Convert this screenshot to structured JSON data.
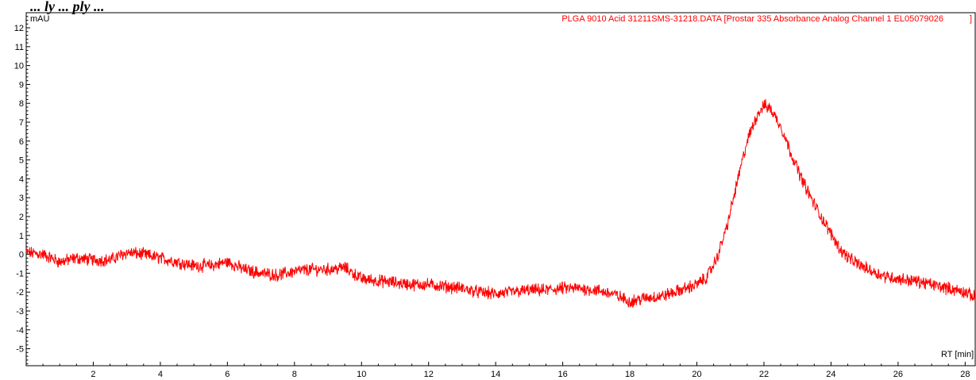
{
  "page": {
    "heading": "... ly ... ply ..."
  },
  "chart_data": {
    "type": "line",
    "title": "",
    "trace_label": "PLGA 9010 Acid 31211SMS-31218.DATA [Prostar 335 Absorbance Analog Channel 1 EL05079026",
    "trace_label_end": "]",
    "xlabel": "RT [min]",
    "ylabel": "mAU",
    "xlim": [
      0,
      28.3
    ],
    "ylim": [
      -5.9,
      12.8
    ],
    "x_ticks": [
      2,
      4,
      6,
      8,
      10,
      12,
      14,
      16,
      18,
      20,
      22,
      24,
      26,
      28
    ],
    "y_ticks": [
      -5,
      -4,
      -3,
      -2,
      -1,
      0,
      1,
      2,
      3,
      4,
      5,
      6,
      7,
      8,
      9,
      10,
      11,
      12
    ],
    "grid": false,
    "color": "#ff0000",
    "series": [
      {
        "x": [
          0,
          0.5,
          1,
          1.5,
          2,
          2.5,
          3,
          3.5,
          4,
          4.5,
          5,
          5.5,
          6,
          6.5,
          7,
          7.5,
          8,
          8.5,
          9,
          9.5,
          10,
          10.5,
          11,
          11.5,
          12,
          12.5,
          13,
          13.5,
          14,
          14.5,
          15,
          15.5,
          16,
          16.5,
          17,
          17.5,
          18,
          18.5,
          19,
          19.5,
          20,
          20.3,
          20.6,
          20.9,
          21.2,
          21.5,
          21.8,
          22,
          22.2,
          22.5,
          22.8,
          23.1,
          23.4,
          23.7,
          24,
          24.3,
          24.6,
          25,
          25.5,
          26,
          26.5,
          27,
          27.5,
          28,
          28.3
        ],
        "y": [
          0.1,
          0.0,
          -0.4,
          -0.2,
          -0.3,
          -0.3,
          0.1,
          0.0,
          -0.2,
          -0.4,
          -0.6,
          -0.6,
          -0.4,
          -0.8,
          -1.0,
          -1.1,
          -0.9,
          -0.8,
          -0.8,
          -0.7,
          -1.3,
          -1.4,
          -1.5,
          -1.6,
          -1.6,
          -1.7,
          -1.8,
          -2.0,
          -2.1,
          -2.0,
          -1.9,
          -1.9,
          -1.8,
          -1.8,
          -1.9,
          -2.1,
          -2.5,
          -2.3,
          -2.2,
          -1.9,
          -1.6,
          -1.2,
          -0.2,
          1.5,
          3.8,
          6.0,
          7.4,
          7.9,
          7.7,
          6.8,
          5.4,
          4.1,
          3.0,
          2.0,
          1.1,
          0.2,
          -0.3,
          -0.7,
          -1.1,
          -1.3,
          -1.4,
          -1.6,
          -1.8,
          -2.0,
          -2.3
        ]
      }
    ]
  }
}
